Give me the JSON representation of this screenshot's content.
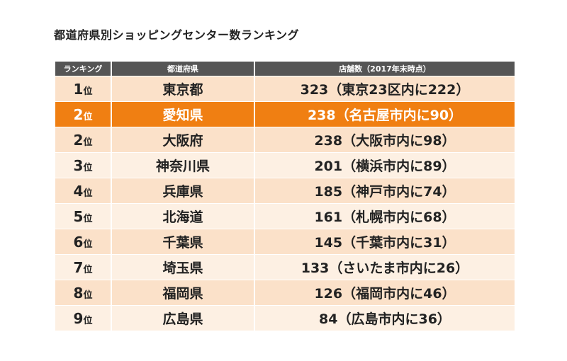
{
  "chart_data": {
    "type": "table",
    "title": "都道府県別ショッピングセンター数ランキング",
    "columns": [
      "ランキング",
      "都道府県",
      "店舗数（2017年末時点）"
    ],
    "rank_suffix": "位",
    "highlight_color": "#f07f12",
    "header_color": "#555555",
    "row_colors": [
      "#fbe1c9",
      "#fdf0e3"
    ],
    "rows": [
      {
        "rank": "1",
        "prefecture": "東京都",
        "stores": "323（東京23区内に222）",
        "highlight": false
      },
      {
        "rank": "2",
        "prefecture": "愛知県",
        "stores": "238（名古屋市内に90）",
        "highlight": true
      },
      {
        "rank": "2",
        "prefecture": "大阪府",
        "stores": "238（大阪市内に98）",
        "highlight": false
      },
      {
        "rank": "3",
        "prefecture": "神奈川県",
        "stores": "201（横浜市内に89）",
        "highlight": false
      },
      {
        "rank": "4",
        "prefecture": "兵庫県",
        "stores": "185（神戸市内に74）",
        "highlight": false
      },
      {
        "rank": "5",
        "prefecture": "北海道",
        "stores": "161（札幌市内に68）",
        "highlight": false
      },
      {
        "rank": "6",
        "prefecture": "千葉県",
        "stores": "145（千葉市内に31）",
        "highlight": false
      },
      {
        "rank": "7",
        "prefecture": "埼玉県",
        "stores": "133（さいたま市内に26）",
        "highlight": false
      },
      {
        "rank": "8",
        "prefecture": "福岡県",
        "stores": "126（福岡市内に46）",
        "highlight": false
      },
      {
        "rank": "9",
        "prefecture": "広島県",
        "stores": "84（広島市内に36）",
        "highlight": false
      }
    ]
  }
}
